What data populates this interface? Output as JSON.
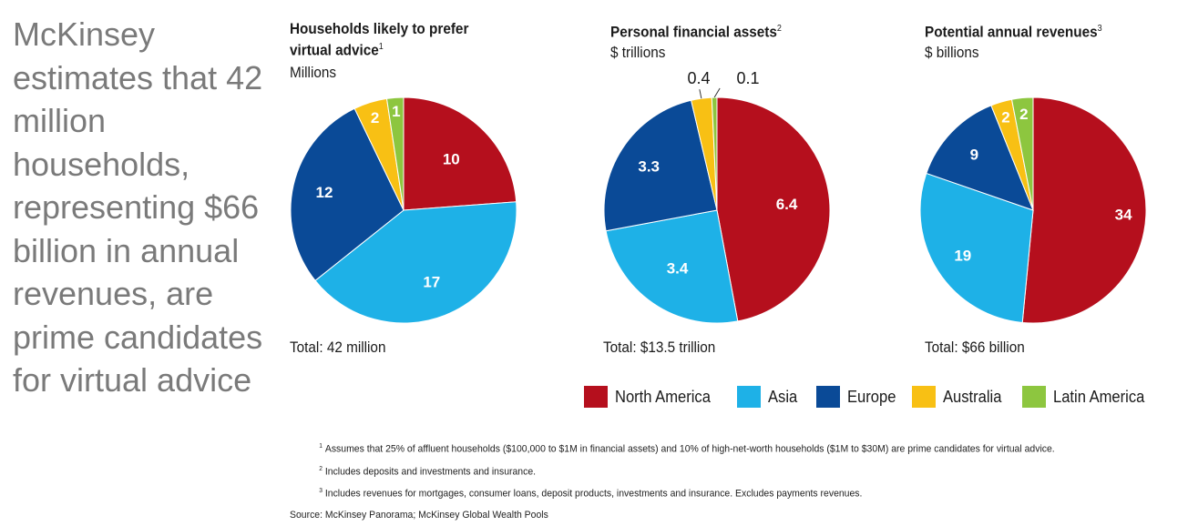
{
  "headline": "McKinsey estimates that 42 million households, representing $66 billion in annual revenues, are prime candidates for virtual advice",
  "regions": [
    {
      "name": "North America",
      "color": "#b50f1d"
    },
    {
      "name": "Asia",
      "color": "#1eb1e7"
    },
    {
      "name": "Europe",
      "color": "#0a4a97"
    },
    {
      "name": "Australia",
      "color": "#f8c014"
    },
    {
      "name": "Latin America",
      "color": "#8dc63f"
    }
  ],
  "chart_data": [
    {
      "type": "pie",
      "title": "Households likely to prefer virtual advice",
      "title_line1": "Households likely to prefer",
      "title_line2": "virtual advice",
      "footnote_ref": "1",
      "unit": "Millions",
      "total": "Total: 42 million",
      "categories": [
        "North America",
        "Asia",
        "Europe",
        "Australia",
        "Latin America"
      ],
      "values": [
        10,
        17,
        12,
        2,
        1
      ],
      "labels": [
        "10",
        "17",
        "12",
        "2",
        "1"
      ]
    },
    {
      "type": "pie",
      "title": "Personal financial assets",
      "title_line1": "Personal financial assets",
      "title_line2": "",
      "footnote_ref": "2",
      "unit": "$ trillions",
      "total": "Total: $13.5 trillion",
      "categories": [
        "North America",
        "Asia",
        "Europe",
        "Australia",
        "Latin America"
      ],
      "values": [
        6.4,
        3.4,
        3.3,
        0.4,
        0.1
      ],
      "labels": [
        "6.4",
        "3.4",
        "3.3",
        "0.4",
        "0.1"
      ]
    },
    {
      "type": "pie",
      "title": "Potential annual revenues",
      "title_line1": "Potential annual revenues",
      "title_line2": "",
      "footnote_ref": "3",
      "unit": "$ billions",
      "total": "Total: $66 billion",
      "categories": [
        "North America",
        "Asia",
        "Europe",
        "Australia",
        "Latin America"
      ],
      "values": [
        34,
        19,
        9,
        2,
        2
      ],
      "labels": [
        "34",
        "19",
        "9",
        "2",
        "2"
      ]
    }
  ],
  "footnotes": [
    {
      "num": "1",
      "text": "Assumes that 25% of affluent households ($100,000 to $1M in financial assets) and 10% of high-net-worth households ($1M to $30M) are prime candidates for virtual advice."
    },
    {
      "num": "2",
      "text": "Includes deposits and investments and insurance."
    },
    {
      "num": "3",
      "text": "Includes revenues for mortgages, consumer loans, deposit products, investments and insurance. Excludes payments revenues."
    }
  ],
  "source": "Source: McKinsey Panorama; McKinsey Global Wealth Pools"
}
